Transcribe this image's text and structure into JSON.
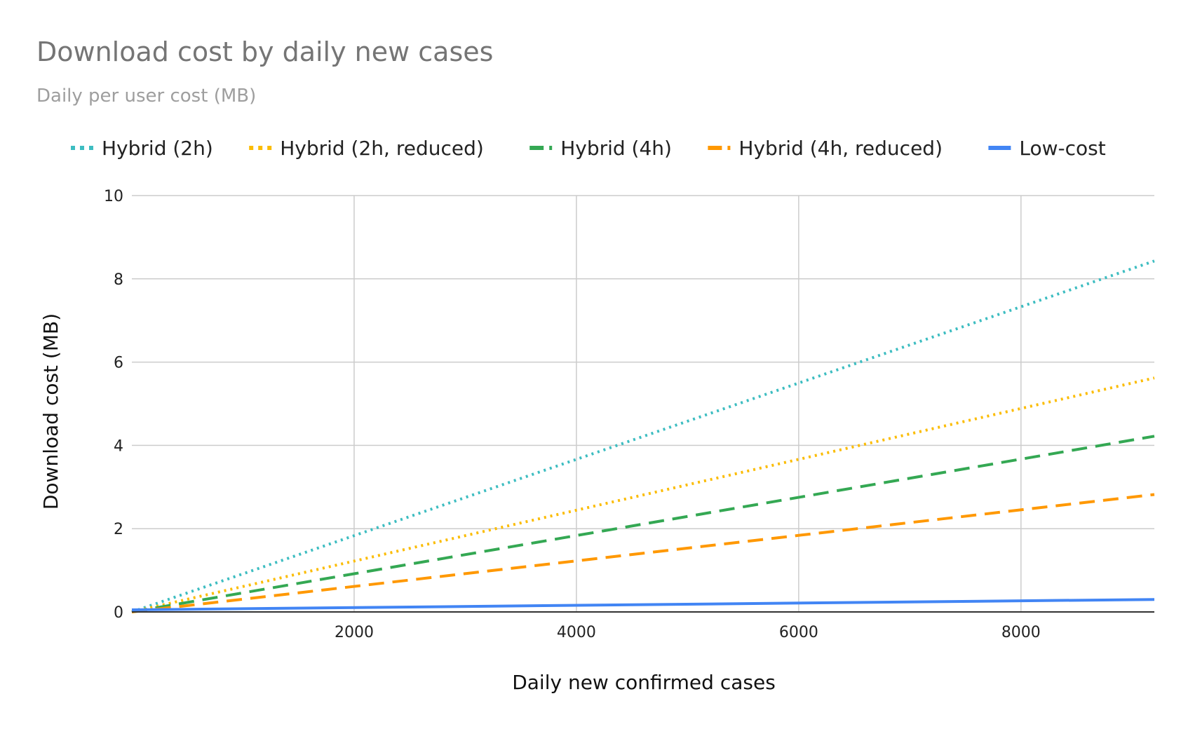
{
  "chart_data": {
    "type": "line",
    "title": "Download cost by daily new cases",
    "subtitle": "Daily per user cost (MB)",
    "xlabel": "Daily new confirmed cases",
    "ylabel": "Download cost (MB)",
    "xlim": [
      0,
      9200
    ],
    "ylim": [
      0,
      10
    ],
    "xticks": [
      2000,
      4000,
      6000,
      8000
    ],
    "yticks": [
      0,
      2,
      4,
      6,
      8,
      10
    ],
    "grid": true,
    "legend_position": "top",
    "series": [
      {
        "name": "Hybrid (2h)",
        "color": "#3dbdc1",
        "style": "dotted",
        "x": [
          0,
          9200
        ],
        "values": [
          0,
          8.43
        ]
      },
      {
        "name": "Hybrid (2h, reduced)",
        "color": "#fbbc04",
        "style": "dotted",
        "x": [
          0,
          9200
        ],
        "values": [
          0,
          5.62
        ]
      },
      {
        "name": "Hybrid (4h)",
        "color": "#34a853",
        "style": "dashed",
        "x": [
          0,
          9200
        ],
        "values": [
          0,
          4.22
        ]
      },
      {
        "name": "Hybrid (4h, reduced)",
        "color": "#ff9800",
        "style": "dashed",
        "x": [
          0,
          9200
        ],
        "values": [
          0,
          2.82
        ]
      },
      {
        "name": "Low-cost",
        "color": "#4285f4",
        "style": "solid",
        "x": [
          0,
          9200
        ],
        "values": [
          0.05,
          0.3
        ]
      }
    ]
  }
}
